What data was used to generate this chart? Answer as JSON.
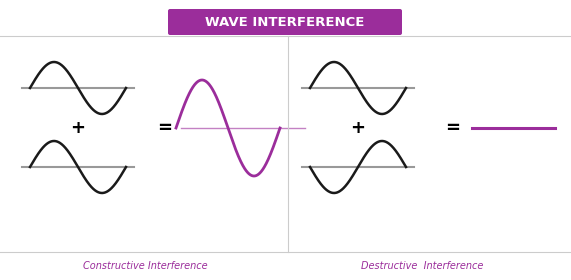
{
  "title": "WAVE INTERFERENCE",
  "title_bg_color": "#9b2d9b",
  "title_text_color": "#ffffff",
  "wave_color_black": "#1a1a1a",
  "wave_color_purple": "#9b2d9b",
  "line_color_gray": "#999999",
  "constructive_label": "Constructive Interference",
  "destructive_label": "Destructive  Interference",
  "label_color": "#9b2d9b",
  "label_fontsize": 7,
  "background_color": "#ffffff",
  "divider_color": "#cccccc",
  "plus_fontsize": 13,
  "equals_fontsize": 13,
  "title_fontsize": 9.5
}
